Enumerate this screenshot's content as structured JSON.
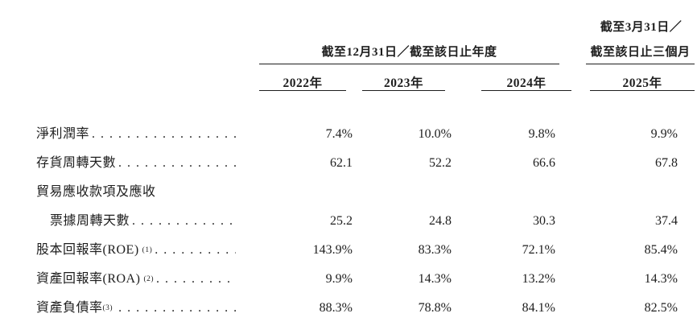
{
  "page": {
    "background": "#ffffff",
    "text_color": "#1e1e1e"
  },
  "table": {
    "header": {
      "quarter_group_line1": "截至3月31日／",
      "quarter_group_line2": "截至該日止三個月",
      "annual_group": "截至12月31日／截至該日止年度",
      "years": [
        "2022年",
        "2023年",
        "2024年",
        "2025年"
      ]
    },
    "leader_dots": "..............................................................",
    "rows": [
      {
        "label": "淨利潤率",
        "sup": "",
        "values": [
          "7.4%",
          "10.0%",
          "9.8%",
          "9.9%"
        ]
      },
      {
        "label": "存貨周轉天數",
        "sup": "",
        "values": [
          "62.1",
          "52.2",
          "66.6",
          "67.8"
        ]
      },
      {
        "label": "貿易應收款項及應收",
        "sup": "",
        "values": [
          "",
          "",
          "",
          ""
        ]
      },
      {
        "label": "票據周轉天數",
        "sup": "",
        "values": [
          "25.2",
          "24.8",
          "30.3",
          "37.4"
        ]
      },
      {
        "label": "股本回報率(ROE)",
        "sup": "(1)",
        "values": [
          "143.9%",
          "83.3%",
          "72.1%",
          "85.4%"
        ]
      },
      {
        "label": "資產回報率(ROA)",
        "sup": "(2)",
        "values": [
          "9.9%",
          "14.3%",
          "13.2%",
          "14.3%"
        ]
      },
      {
        "label": "資產負債率",
        "sup": "(3)",
        "values": [
          "88.3%",
          "78.8%",
          "84.1%",
          "82.5%"
        ]
      }
    ]
  }
}
